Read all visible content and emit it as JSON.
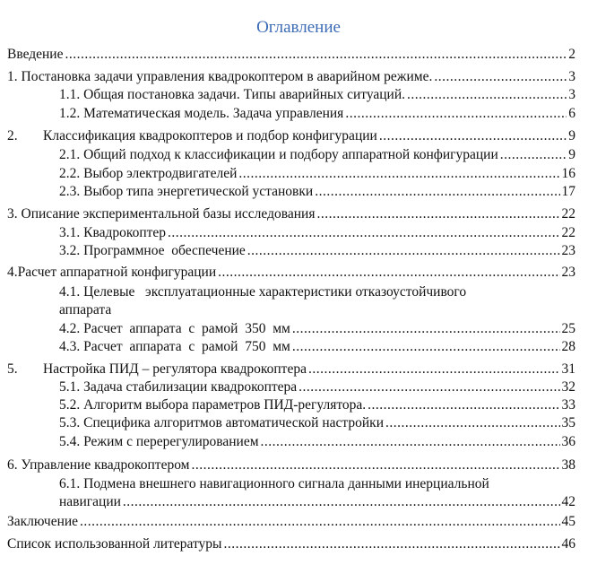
{
  "title": "Оглавление",
  "entries": [
    {
      "text": "Введение",
      "page": "2"
    },
    {
      "text": "1. Постановка задачи управления квадрокоптером в аварийном режиме.",
      "page": "3"
    },
    {
      "text": "1.1. Общая постановка задачи. Типы аварийных ситуаций.",
      "page": "3"
    },
    {
      "text": "1.2. Математическая модель. Задача управления",
      "page": "6"
    },
    {
      "num": "2.",
      "text": "Классификация квадрокоптеров и подбор конфигурации",
      "page": "9"
    },
    {
      "text": "2.1. Общий подход к классификации и подбору аппаратной конфигурации",
      "page": "9"
    },
    {
      "text": "2.2. Выбор электродвигателей",
      "page": "16"
    },
    {
      "text": "2.3. Выбор типа энергетической установки",
      "page": "17"
    },
    {
      "text": "3. Описание экспериментальной базы исследования",
      "page": "22"
    },
    {
      "text": "3.1. Квадрокоптер",
      "page": "22"
    },
    {
      "text": "3.2. Программное  обеспечение",
      "page": "23"
    },
    {
      "text": "4.Расчет аппаратной конфигурации",
      "page": "23"
    },
    {
      "text": "4.1. Целевые   эксплуатационные характеристики отказоустойчивого",
      "text2": "аппарата"
    },
    {
      "text": "4.2. Расчет  аппарата  с  рамой  350  мм",
      "page": "25"
    },
    {
      "text": "4.3. Расчет  аппарата  с  рамой  750  мм",
      "page": "28"
    },
    {
      "num": "5.",
      "text": "Настройка ПИД – регулятора квадрокоптера",
      "page": "31"
    },
    {
      "text": "5.1. Задача стабилизации квадрокоптера",
      "page": "32"
    },
    {
      "text": "5.2. Алгоритм выбора параметров ПИД-регулятора.",
      "page": "33"
    },
    {
      "text": "5.3. Специфика алгоритмов автоматической настройки",
      "page": "35"
    },
    {
      "text": "5.4. Режим с перерегулированием",
      "page": "36"
    },
    {
      "text": "6. Управление квадрокоптером",
      "page": "38"
    },
    {
      "text": "6.1. Подмена внешнего навигационного сигнала данными инерциальной",
      "text2": "навигации",
      "page": "42"
    },
    {
      "text": "Заключение",
      "page": "45"
    },
    {
      "text": "Список использованной литературы",
      "page": "46"
    }
  ]
}
